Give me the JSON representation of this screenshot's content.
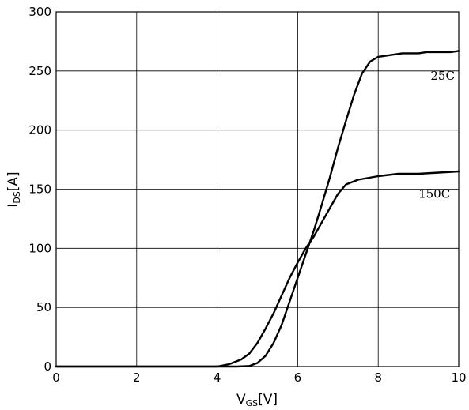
{
  "chart_data": {
    "type": "line",
    "xlabel": {
      "main": "V",
      "sub": "GS",
      "unit": "[V]"
    },
    "ylabel": {
      "main": "I",
      "sub": "DS",
      "unit": "[A]"
    },
    "xlim": [
      0,
      10
    ],
    "ylim": [
      0,
      300
    ],
    "xticks": [
      0,
      2,
      4,
      6,
      8,
      10
    ],
    "yticks": [
      0,
      50,
      100,
      150,
      200,
      250,
      300
    ],
    "grid": true,
    "series": [
      {
        "name": "25C",
        "x": [
          0,
          4.0,
          4.5,
          4.8,
          5.0,
          5.2,
          5.4,
          5.6,
          5.8,
          6.0,
          6.2,
          6.4,
          6.6,
          6.8,
          7.0,
          7.2,
          7.4,
          7.6,
          7.8,
          8.0,
          8.2,
          8.4,
          8.6,
          8.8,
          9.0,
          9.2,
          9.4,
          9.6,
          9.8,
          10
        ],
        "values": [
          0,
          0,
          0,
          0.5,
          3,
          9,
          20,
          35,
          55,
          75,
          95,
          115,
          137,
          160,
          185,
          208,
          230,
          248,
          258,
          262,
          263,
          264,
          265,
          265,
          265,
          266,
          266,
          266,
          266,
          267
        ]
      },
      {
        "name": "150C",
        "x": [
          0,
          4.0,
          4.3,
          4.6,
          4.8,
          5.0,
          5.2,
          5.4,
          5.6,
          5.8,
          6.0,
          6.2,
          6.4,
          6.6,
          6.8,
          7.0,
          7.2,
          7.5,
          8.0,
          8.5,
          9.0,
          9.5,
          10
        ],
        "values": [
          0,
          0,
          2,
          6,
          11,
          20,
          32,
          45,
          60,
          75,
          88,
          100,
          110,
          122,
          134,
          146,
          154,
          158,
          161,
          163,
          163,
          164,
          165
        ]
      }
    ],
    "series_label_positions": [
      {
        "name": "25C",
        "anchor_x": 9.3,
        "anchor_y": 246
      },
      {
        "name": "150C",
        "anchor_x": 9.0,
        "anchor_y": 146
      }
    ]
  }
}
